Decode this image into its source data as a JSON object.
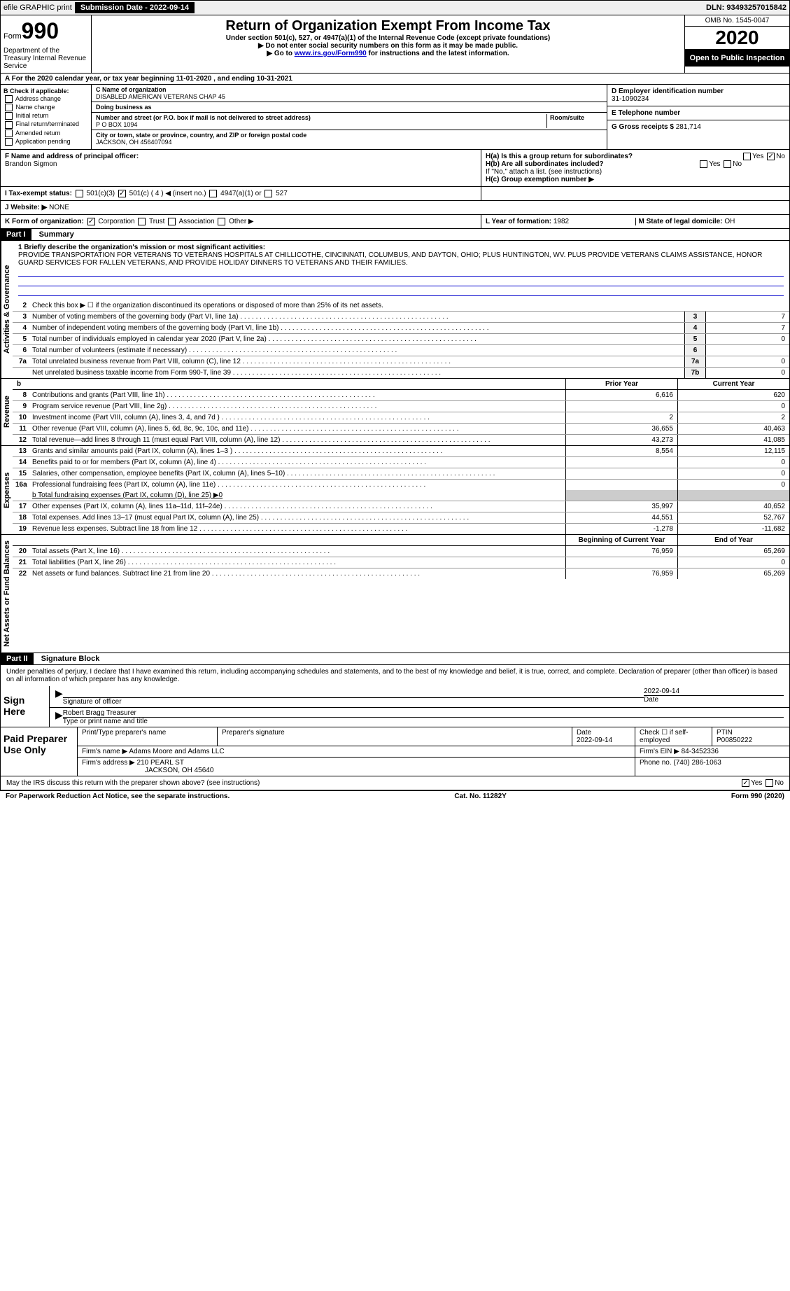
{
  "topbar": {
    "efile": "efile GRAPHIC print",
    "submission_label": "Submission Date - 2022-09-14",
    "dln_label": "DLN: 93493257015842"
  },
  "header": {
    "form_prefix": "Form",
    "form_number": "990",
    "title": "Return of Organization Exempt From Income Tax",
    "subtitle": "Under section 501(c), 527, or 4947(a)(1) of the Internal Revenue Code (except private foundations)",
    "note1": "▶ Do not enter social security numbers on this form as it may be made public.",
    "note2_prefix": "▶ Go to ",
    "note2_link": "www.irs.gov/Form990",
    "note2_suffix": " for instructions and the latest information.",
    "omb": "OMB No. 1545-0047",
    "year": "2020",
    "open": "Open to Public Inspection",
    "dept": "Department of the Treasury Internal Revenue Service"
  },
  "section_a": {
    "text": "A For the 2020 calendar year, or tax year beginning 11-01-2020   , and ending 10-31-2021"
  },
  "section_b": {
    "header": "B Check if applicable:",
    "opts": [
      "Address change",
      "Name change",
      "Initial return",
      "Final return/terminated",
      "Amended return",
      "Application pending"
    ]
  },
  "section_c": {
    "name_label": "C Name of organization",
    "name": "DISABLED AMERICAN VETERANS CHAP 45",
    "dba_label": "Doing business as",
    "street_label": "Number and street (or P.O. box if mail is not delivered to street address)",
    "room_label": "Room/suite",
    "street": "P O BOX 1094",
    "city_label": "City or town, state or province, country, and ZIP or foreign postal code",
    "city": "JACKSON, OH  456407094"
  },
  "section_d": {
    "label": "D Employer identification number",
    "value": "31-1090234"
  },
  "section_e": {
    "label": "E Telephone number"
  },
  "section_g": {
    "label": "G Gross receipts $",
    "value": "281,714"
  },
  "section_f": {
    "label": "F  Name and address of principal officer:",
    "name": "Brandon Sigmon"
  },
  "section_h": {
    "a_label": "H(a)  Is this a group return for subordinates?",
    "a_yes": "Yes",
    "a_no": "No",
    "b_label": "H(b)  Are all subordinates included?",
    "b_yes": "Yes",
    "b_no": "No",
    "b_note": "If \"No,\" attach a list. (see instructions)",
    "c_label": "H(c)  Group exemption number ▶"
  },
  "section_i": {
    "label": "I  Tax-exempt status:",
    "opt1": "501(c)(3)",
    "opt2": "501(c) ( 4 ) ◀ (insert no.)",
    "opt3": "4947(a)(1) or",
    "opt4": "527"
  },
  "section_j": {
    "label": "J  Website: ▶",
    "value": "NONE"
  },
  "section_k": {
    "label": "K Form of organization:",
    "opts": [
      "Corporation",
      "Trust",
      "Association",
      "Other ▶"
    ]
  },
  "section_l": {
    "label": "L Year of formation:",
    "value": "1982"
  },
  "section_m": {
    "label": "M State of legal domicile:",
    "value": "OH"
  },
  "part1": {
    "header": "Part I",
    "title": "Summary",
    "line1_label": "1  Briefly describe the organization's mission or most significant activities:",
    "mission": "PROVIDE TRANSPORTATION FOR VETERANS TO VETERANS HOSPITALS AT CHILLICOTHE, CINCINNATI, COLUMBUS, AND DAYTON, OHIO; PLUS HUNTINGTON, WV. PLUS PROVIDE VETERANS CLAIMS ASSISTANCE, HONOR GUARD SERVICES FOR FALLEN VETERANS, AND PROVIDE HOLIDAY DINNERS TO VETERANS AND THEIR FAMILIES.",
    "line2": "Check this box ▶ ☐ if the organization discontinued its operations or disposed of more than 25% of its net assets.",
    "governance_label": "Activities & Governance",
    "revenue_label": "Revenue",
    "expenses_label": "Expenses",
    "netassets_label": "Net Assets or Fund Balances",
    "lines_simple": [
      {
        "n": "3",
        "t": "Number of voting members of the governing body (Part VI, line 1a)",
        "box": "3",
        "v": "7"
      },
      {
        "n": "4",
        "t": "Number of independent voting members of the governing body (Part VI, line 1b)",
        "box": "4",
        "v": "7"
      },
      {
        "n": "5",
        "t": "Total number of individuals employed in calendar year 2020 (Part V, line 2a)",
        "box": "5",
        "v": "0"
      },
      {
        "n": "6",
        "t": "Total number of volunteers (estimate if necessary)",
        "box": "6",
        "v": ""
      },
      {
        "n": "7a",
        "t": "Total unrelated business revenue from Part VIII, column (C), line 12",
        "box": "7a",
        "v": "0"
      },
      {
        "n": "",
        "t": "Net unrelated business taxable income from Form 990-T, line 39",
        "box": "7b",
        "v": "0"
      }
    ],
    "prior_year": "Prior Year",
    "current_year": "Current Year",
    "lines_two": [
      {
        "n": "8",
        "t": "Contributions and grants (Part VIII, line 1h)",
        "p": "6,616",
        "c": "620"
      },
      {
        "n": "9",
        "t": "Program service revenue (Part VIII, line 2g)",
        "p": "",
        "c": "0"
      },
      {
        "n": "10",
        "t": "Investment income (Part VIII, column (A), lines 3, 4, and 7d )",
        "p": "2",
        "c": "2"
      },
      {
        "n": "11",
        "t": "Other revenue (Part VIII, column (A), lines 5, 6d, 8c, 9c, 10c, and 11e)",
        "p": "36,655",
        "c": "40,463"
      },
      {
        "n": "12",
        "t": "Total revenue—add lines 8 through 11 (must equal Part VIII, column (A), line 12)",
        "p": "43,273",
        "c": "41,085"
      },
      {
        "n": "13",
        "t": "Grants and similar amounts paid (Part IX, column (A), lines 1–3 )",
        "p": "8,554",
        "c": "12,115"
      },
      {
        "n": "14",
        "t": "Benefits paid to or for members (Part IX, column (A), line 4)",
        "p": "",
        "c": "0"
      },
      {
        "n": "15",
        "t": "Salaries, other compensation, employee benefits (Part IX, column (A), lines 5–10)",
        "p": "",
        "c": "0"
      },
      {
        "n": "16a",
        "t": "Professional fundraising fees (Part IX, column (A), line 11e)",
        "p": "",
        "c": "0"
      }
    ],
    "line16b": "b  Total fundraising expenses (Part IX, column (D), line 25) ▶0",
    "lines_two_b": [
      {
        "n": "17",
        "t": "Other expenses (Part IX, column (A), lines 11a–11d, 11f–24e)",
        "p": "35,997",
        "c": "40,652"
      },
      {
        "n": "18",
        "t": "Total expenses. Add lines 13–17 (must equal Part IX, column (A), line 25)",
        "p": "44,551",
        "c": "52,767"
      },
      {
        "n": "19",
        "t": "Revenue less expenses. Subtract line 18 from line 12",
        "p": "-1,278",
        "c": "-11,682"
      }
    ],
    "begin_year": "Beginning of Current Year",
    "end_year": "End of Year",
    "lines_net": [
      {
        "n": "20",
        "t": "Total assets (Part X, line 16)",
        "p": "76,959",
        "c": "65,269"
      },
      {
        "n": "21",
        "t": "Total liabilities (Part X, line 26)",
        "p": "",
        "c": "0"
      },
      {
        "n": "22",
        "t": "Net assets or fund balances. Subtract line 21 from line 20",
        "p": "76,959",
        "c": "65,269"
      }
    ]
  },
  "part2": {
    "header": "Part II",
    "title": "Signature Block",
    "declaration": "Under penalties of perjury, I declare that I have examined this return, including accompanying schedules and statements, and to the best of my knowledge and belief, it is true, correct, and complete. Declaration of preparer (other than officer) is based on all information of which preparer has any knowledge.",
    "sign_here": "Sign Here",
    "sig_officer": "Signature of officer",
    "sig_date": "2022-09-14",
    "date_label": "Date",
    "officer_name": "Robert Bragg  Treasurer",
    "type_name": "Type or print name and title",
    "paid_prep": "Paid Preparer Use Only",
    "prep_name_label": "Print/Type preparer's name",
    "prep_sig_label": "Preparer's signature",
    "prep_date_label": "Date",
    "prep_date": "2022-09-14",
    "check_if": "Check ☐ if self-employed",
    "ptin_label": "PTIN",
    "ptin": "P00850222",
    "firm_name_label": "Firm's name    ▶",
    "firm_name": "Adams Moore and Adams LLC",
    "firm_ein_label": "Firm's EIN ▶",
    "firm_ein": "84-3452336",
    "firm_addr_label": "Firm's address ▶",
    "firm_addr1": "210 PEARL ST",
    "firm_addr2": "JACKSON, OH  45640",
    "phone_label": "Phone no.",
    "phone": "(740) 286-1063",
    "discuss": "May the IRS discuss this return with the preparer shown above? (see instructions)",
    "yes": "Yes",
    "no": "No"
  },
  "footer": {
    "pra": "For Paperwork Reduction Act Notice, see the separate instructions.",
    "cat": "Cat. No. 11282Y",
    "form": "Form 990 (2020)"
  }
}
